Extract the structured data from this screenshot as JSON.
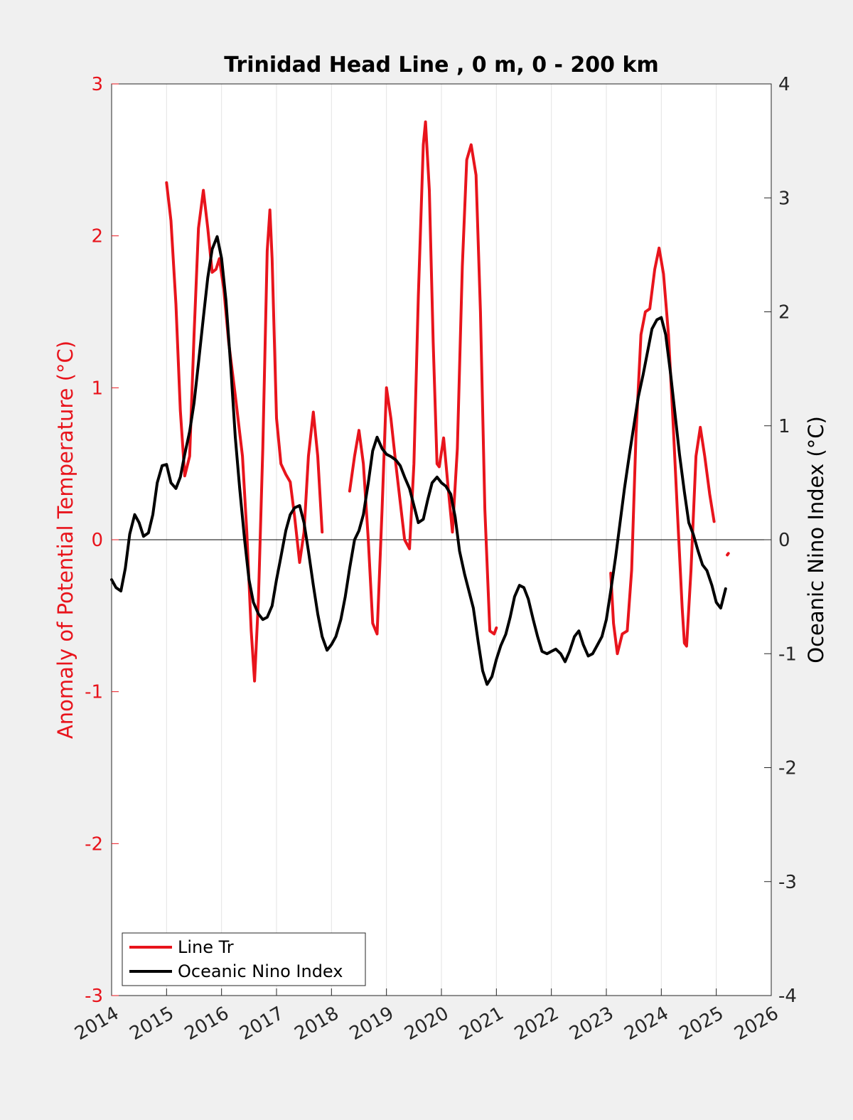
{
  "chart_data": {
    "type": "line",
    "title": "Trinidad Head Line , 0 m, 0 - 200 km",
    "ylabel_left": "Anomaly of Potential Temperature (°C)",
    "ylabel_right": "Oceanic Nino Index (°C)",
    "xlim": [
      2014,
      2026
    ],
    "ylim_left": [
      -3,
      3
    ],
    "ylim_right": [
      -4,
      4
    ],
    "xticks": [
      "2014",
      "2015",
      "2016",
      "2017",
      "2018",
      "2019",
      "2020",
      "2021",
      "2022",
      "2023",
      "2024",
      "2025",
      "2026"
    ],
    "yticks_left": [
      "-3",
      "-2",
      "-1",
      "0",
      "1",
      "2",
      "3"
    ],
    "yticks_right": [
      "-4",
      "-3",
      "-2",
      "-1",
      "0",
      "1",
      "2",
      "3",
      "4"
    ],
    "grid": "vertical",
    "zero_line": true,
    "legend_position": "bottom-left",
    "colors": {
      "line_tr": "#e8141c",
      "oni": "#000000",
      "left_axis": "#e8141c"
    },
    "series": [
      {
        "name": "Line Tr",
        "axis": "left",
        "color": "#e8141c",
        "segments": [
          [
            [
              2015.0,
              2.35
            ],
            [
              2015.08,
              2.1
            ],
            [
              2015.17,
              1.55
            ],
            [
              2015.25,
              0.85
            ],
            [
              2015.33,
              0.42
            ],
            [
              2015.42,
              0.55
            ],
            [
              2015.5,
              1.35
            ],
            [
              2015.58,
              2.05
            ],
            [
              2015.67,
              2.3
            ],
            [
              2015.75,
              2.05
            ],
            [
              2015.83,
              1.76
            ],
            [
              2015.9,
              1.78
            ],
            [
              2015.96,
              1.85
            ],
            [
              2016.04,
              1.65
            ],
            [
              2016.13,
              1.3
            ],
            [
              2016.25,
              0.95
            ],
            [
              2016.38,
              0.55
            ],
            [
              2016.46,
              0.05
            ],
            [
              2016.54,
              -0.6
            ],
            [
              2016.6,
              -0.93
            ],
            [
              2016.67,
              -0.4
            ],
            [
              2016.75,
              0.6
            ],
            [
              2016.83,
              1.9
            ],
            [
              2016.88,
              2.17
            ],
            [
              2016.92,
              1.85
            ],
            [
              2017.0,
              0.8
            ],
            [
              2017.08,
              0.5
            ],
            [
              2017.17,
              0.43
            ],
            [
              2017.25,
              0.38
            ],
            [
              2017.33,
              0.15
            ],
            [
              2017.42,
              -0.15
            ],
            [
              2017.5,
              0.05
            ],
            [
              2017.58,
              0.55
            ],
            [
              2017.67,
              0.84
            ],
            [
              2017.75,
              0.55
            ],
            [
              2017.83,
              0.05
            ]
          ],
          [
            [
              2018.33,
              0.32
            ],
            [
              2018.42,
              0.55
            ],
            [
              2018.5,
              0.72
            ],
            [
              2018.58,
              0.5
            ],
            [
              2018.67,
              0.0
            ],
            [
              2018.75,
              -0.55
            ],
            [
              2018.83,
              -0.62
            ],
            [
              2018.92,
              0.2
            ],
            [
              2019.0,
              1.0
            ],
            [
              2019.08,
              0.8
            ],
            [
              2019.17,
              0.5
            ],
            [
              2019.25,
              0.25
            ],
            [
              2019.33,
              0.0
            ],
            [
              2019.42,
              -0.06
            ],
            [
              2019.5,
              0.5
            ],
            [
              2019.58,
              1.6
            ],
            [
              2019.67,
              2.6
            ],
            [
              2019.71,
              2.75
            ],
            [
              2019.78,
              2.3
            ],
            [
              2019.85,
              1.3
            ],
            [
              2019.92,
              0.5
            ],
            [
              2019.96,
              0.48
            ],
            [
              2020.04,
              0.67
            ],
            [
              2020.12,
              0.35
            ],
            [
              2020.2,
              0.05
            ],
            [
              2020.29,
              0.6
            ],
            [
              2020.38,
              1.8
            ],
            [
              2020.46,
              2.5
            ],
            [
              2020.54,
              2.6
            ],
            [
              2020.63,
              2.4
            ],
            [
              2020.71,
              1.5
            ],
            [
              2020.79,
              0.2
            ],
            [
              2020.88,
              -0.6
            ],
            [
              2020.96,
              -0.62
            ],
            [
              2021.0,
              -0.58
            ]
          ],
          [
            [
              2023.08,
              -0.22
            ],
            [
              2023.13,
              -0.55
            ],
            [
              2023.2,
              -0.75
            ],
            [
              2023.29,
              -0.62
            ],
            [
              2023.38,
              -0.6
            ],
            [
              2023.46,
              -0.2
            ],
            [
              2023.54,
              0.7
            ],
            [
              2023.63,
              1.35
            ],
            [
              2023.71,
              1.5
            ],
            [
              2023.79,
              1.52
            ],
            [
              2023.88,
              1.78
            ],
            [
              2023.96,
              1.92
            ],
            [
              2024.04,
              1.75
            ],
            [
              2024.13,
              1.35
            ],
            [
              2024.21,
              0.8
            ],
            [
              2024.29,
              0.2
            ],
            [
              2024.38,
              -0.45
            ],
            [
              2024.42,
              -0.68
            ],
            [
              2024.46,
              -0.7
            ],
            [
              2024.54,
              -0.2
            ],
            [
              2024.63,
              0.55
            ],
            [
              2024.71,
              0.74
            ],
            [
              2024.79,
              0.55
            ],
            [
              2024.88,
              0.3
            ],
            [
              2024.96,
              0.12
            ]
          ],
          [
            [
              2025.2,
              -0.1
            ],
            [
              2025.22,
              -0.09
            ]
          ]
        ]
      },
      {
        "name": "Oceanic Nino Index",
        "axis": "right",
        "color": "#000000",
        "segments": [
          [
            [
              2014.0,
              -0.35
            ],
            [
              2014.08,
              -0.42
            ],
            [
              2014.17,
              -0.45
            ],
            [
              2014.25,
              -0.25
            ],
            [
              2014.33,
              0.05
            ],
            [
              2014.42,
              0.22
            ],
            [
              2014.5,
              0.15
            ],
            [
              2014.58,
              0.03
            ],
            [
              2014.67,
              0.06
            ],
            [
              2014.75,
              0.22
            ],
            [
              2014.83,
              0.5
            ],
            [
              2014.92,
              0.65
            ],
            [
              2015.0,
              0.66
            ],
            [
              2015.08,
              0.5
            ],
            [
              2015.17,
              0.45
            ],
            [
              2015.25,
              0.55
            ],
            [
              2015.33,
              0.75
            ],
            [
              2015.42,
              0.95
            ],
            [
              2015.5,
              1.2
            ],
            [
              2015.58,
              1.55
            ],
            [
              2015.67,
              1.95
            ],
            [
              2015.75,
              2.3
            ],
            [
              2015.83,
              2.55
            ],
            [
              2015.92,
              2.66
            ],
            [
              2016.0,
              2.47
            ],
            [
              2016.08,
              2.1
            ],
            [
              2016.17,
              1.5
            ],
            [
              2016.25,
              0.9
            ],
            [
              2016.33,
              0.45
            ],
            [
              2016.42,
              0.0
            ],
            [
              2016.5,
              -0.35
            ],
            [
              2016.58,
              -0.55
            ],
            [
              2016.67,
              -0.65
            ],
            [
              2016.75,
              -0.7
            ],
            [
              2016.83,
              -0.68
            ],
            [
              2016.92,
              -0.58
            ],
            [
              2017.0,
              -0.35
            ],
            [
              2017.08,
              -0.15
            ],
            [
              2017.17,
              0.08
            ],
            [
              2017.25,
              0.22
            ],
            [
              2017.33,
              0.28
            ],
            [
              2017.42,
              0.3
            ],
            [
              2017.5,
              0.15
            ],
            [
              2017.58,
              -0.1
            ],
            [
              2017.67,
              -0.4
            ],
            [
              2017.75,
              -0.65
            ],
            [
              2017.83,
              -0.85
            ],
            [
              2017.92,
              -0.97
            ],
            [
              2018.0,
              -0.92
            ],
            [
              2018.08,
              -0.85
            ],
            [
              2018.17,
              -0.7
            ],
            [
              2018.25,
              -0.5
            ],
            [
              2018.33,
              -0.25
            ],
            [
              2018.42,
              0.0
            ],
            [
              2018.5,
              0.08
            ],
            [
              2018.58,
              0.22
            ],
            [
              2018.67,
              0.5
            ],
            [
              2018.75,
              0.78
            ],
            [
              2018.83,
              0.9
            ],
            [
              2018.92,
              0.8
            ],
            [
              2019.0,
              0.75
            ],
            [
              2019.08,
              0.73
            ],
            [
              2019.17,
              0.7
            ],
            [
              2019.25,
              0.65
            ],
            [
              2019.33,
              0.55
            ],
            [
              2019.42,
              0.45
            ],
            [
              2019.5,
              0.3
            ],
            [
              2019.58,
              0.15
            ],
            [
              2019.67,
              0.18
            ],
            [
              2019.75,
              0.35
            ],
            [
              2019.83,
              0.5
            ],
            [
              2019.92,
              0.55
            ],
            [
              2020.0,
              0.5
            ],
            [
              2020.08,
              0.47
            ],
            [
              2020.17,
              0.4
            ],
            [
              2020.25,
              0.2
            ],
            [
              2020.33,
              -0.1
            ],
            [
              2020.42,
              -0.3
            ],
            [
              2020.5,
              -0.45
            ],
            [
              2020.58,
              -0.6
            ],
            [
              2020.67,
              -0.9
            ],
            [
              2020.75,
              -1.15
            ],
            [
              2020.83,
              -1.27
            ],
            [
              2020.92,
              -1.2
            ],
            [
              2021.0,
              -1.05
            ],
            [
              2021.08,
              -0.93
            ],
            [
              2021.17,
              -0.83
            ],
            [
              2021.25,
              -0.68
            ],
            [
              2021.33,
              -0.5
            ],
            [
              2021.42,
              -0.4
            ],
            [
              2021.5,
              -0.42
            ],
            [
              2021.58,
              -0.52
            ],
            [
              2021.67,
              -0.7
            ],
            [
              2021.75,
              -0.85
            ],
            [
              2021.83,
              -0.98
            ],
            [
              2021.92,
              -1.0
            ],
            [
              2022.0,
              -0.98
            ],
            [
              2022.08,
              -0.96
            ],
            [
              2022.17,
              -1.0
            ],
            [
              2022.25,
              -1.07
            ],
            [
              2022.33,
              -0.98
            ],
            [
              2022.42,
              -0.85
            ],
            [
              2022.5,
              -0.8
            ],
            [
              2022.58,
              -0.92
            ],
            [
              2022.67,
              -1.02
            ],
            [
              2022.75,
              -1.0
            ],
            [
              2022.83,
              -0.93
            ],
            [
              2022.92,
              -0.85
            ],
            [
              2023.0,
              -0.7
            ],
            [
              2023.08,
              -0.45
            ],
            [
              2023.17,
              -0.15
            ],
            [
              2023.25,
              0.15
            ],
            [
              2023.33,
              0.45
            ],
            [
              2023.42,
              0.75
            ],
            [
              2023.5,
              1.0
            ],
            [
              2023.58,
              1.25
            ],
            [
              2023.67,
              1.45
            ],
            [
              2023.75,
              1.65
            ],
            [
              2023.83,
              1.85
            ],
            [
              2023.92,
              1.93
            ],
            [
              2024.0,
              1.95
            ],
            [
              2024.08,
              1.8
            ],
            [
              2024.17,
              1.45
            ],
            [
              2024.25,
              1.1
            ],
            [
              2024.33,
              0.75
            ],
            [
              2024.42,
              0.42
            ],
            [
              2024.5,
              0.15
            ],
            [
              2024.58,
              0.05
            ],
            [
              2024.67,
              -0.1
            ],
            [
              2024.75,
              -0.22
            ],
            [
              2024.83,
              -0.27
            ],
            [
              2024.92,
              -0.4
            ],
            [
              2025.0,
              -0.55
            ],
            [
              2025.08,
              -0.6
            ],
            [
              2025.17,
              -0.43
            ]
          ]
        ]
      }
    ]
  }
}
